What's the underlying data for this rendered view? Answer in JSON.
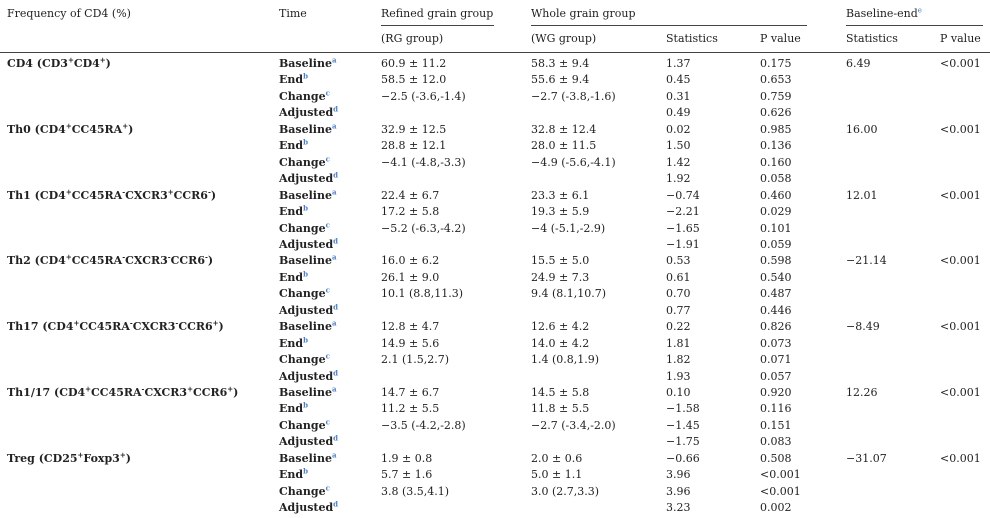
{
  "header": {
    "col_frequency": "Frequency of CD4 (%)",
    "col_time": "Time",
    "col_rg": "Refined grain group",
    "col_rg_sub": "(RG group)",
    "col_wg": "Whole grain group",
    "col_wg_sub": "(WG group)",
    "col_stats": "Statistics",
    "col_p": "P value",
    "col_baseline_end": "Baseline-end",
    "col_baseline_end_sup": "e",
    "col_stats2": "Statistics",
    "col_p2": "P value"
  },
  "time_labels": [
    {
      "label": "Baseline",
      "sup": "a"
    },
    {
      "label": "End",
      "sup": "b"
    },
    {
      "label": "Change",
      "sup": "c"
    },
    {
      "label": "Adjusted",
      "sup": "d"
    }
  ],
  "groups": [
    {
      "name_parts": [
        [
          "CD4 (CD3",
          ""
        ],
        [
          "+",
          "sup"
        ],
        [
          "CD4",
          ""
        ],
        [
          "+",
          "sup"
        ],
        [
          ")",
          ""
        ]
      ],
      "be_stat": "6.49",
      "be_p": "<0.001",
      "rows": [
        {
          "rg": "60.9 ± 11.2",
          "wg": "58.3 ± 9.4",
          "stat": "1.37",
          "p": "0.175"
        },
        {
          "rg": "58.5 ± 12.0",
          "wg": "55.6 ± 9.4",
          "stat": "0.45",
          "p": "0.653"
        },
        {
          "rg": "−2.5 (-3.6,-1.4)",
          "wg": "−2.7 (-3.8,-1.6)",
          "stat": "0.31",
          "p": "0.759"
        },
        {
          "rg": "",
          "wg": "",
          "stat": "0.49",
          "p": "0.626"
        }
      ]
    },
    {
      "name_parts": [
        [
          "Th0 (CD4",
          ""
        ],
        [
          "+",
          "sup"
        ],
        [
          "CC45RA",
          ""
        ],
        [
          "+",
          "sup"
        ],
        [
          ")",
          ""
        ]
      ],
      "be_stat": "16.00",
      "be_p": "<0.001",
      "rows": [
        {
          "rg": "32.9 ± 12.5",
          "wg": "32.8 ± 12.4",
          "stat": "0.02",
          "p": "0.985"
        },
        {
          "rg": "28.8 ± 12.1",
          "wg": "28.0 ± 11.5",
          "stat": "1.50",
          "p": "0.136"
        },
        {
          "rg": "−4.1 (-4.8,-3.3)",
          "wg": "−4.9 (-5.6,-4.1)",
          "stat": "1.42",
          "p": "0.160"
        },
        {
          "rg": "",
          "wg": "",
          "stat": "1.92",
          "p": "0.058"
        }
      ]
    },
    {
      "name_parts": [
        [
          "Th1 (CD4",
          ""
        ],
        [
          "+",
          "sup"
        ],
        [
          "CC45RA",
          ""
        ],
        [
          "-",
          "sup"
        ],
        [
          "CXCR3",
          ""
        ],
        [
          "+",
          "sup"
        ],
        [
          "CCR6",
          ""
        ],
        [
          "-",
          "sup"
        ],
        [
          ")",
          ""
        ]
      ],
      "be_stat": "12.01",
      "be_p": "<0.001",
      "rows": [
        {
          "rg": "22.4 ± 6.7",
          "wg": "23.3 ± 6.1",
          "stat": "−0.74",
          "p": "0.460"
        },
        {
          "rg": "17.2 ± 5.8",
          "wg": "19.3 ± 5.9",
          "stat": "−2.21",
          "p": "0.029"
        },
        {
          "rg": "−5.2 (-6.3,-4.2)",
          "wg": "−4 (-5.1,-2.9)",
          "stat": "−1.65",
          "p": "0.101"
        },
        {
          "rg": "",
          "wg": "",
          "stat": "−1.91",
          "p": "0.059"
        }
      ]
    },
    {
      "name_parts": [
        [
          "Th2 (CD4",
          ""
        ],
        [
          "+",
          "sup"
        ],
        [
          "CC45RA",
          ""
        ],
        [
          "-",
          "sup"
        ],
        [
          "CXCR3",
          ""
        ],
        [
          "-",
          "sup"
        ],
        [
          "CCR6",
          ""
        ],
        [
          "-",
          "sup"
        ],
        [
          ")",
          ""
        ]
      ],
      "be_stat": "−21.14",
      "be_p": "<0.001",
      "rows": [
        {
          "rg": "16.0 ± 6.2",
          "wg": "15.5 ± 5.0",
          "stat": "0.53",
          "p": "0.598"
        },
        {
          "rg": "26.1 ± 9.0",
          "wg": "24.9 ± 7.3",
          "stat": "0.61",
          "p": "0.540"
        },
        {
          "rg": "10.1 (8.8,11.3)",
          "wg": "9.4 (8.1,10.7)",
          "stat": "0.70",
          "p": "0.487"
        },
        {
          "rg": "",
          "wg": "",
          "stat": "0.77",
          "p": "0.446"
        }
      ]
    },
    {
      "name_parts": [
        [
          "Th17 (CD4",
          ""
        ],
        [
          "+",
          "sup"
        ],
        [
          "CC45RA",
          ""
        ],
        [
          "-",
          "sup"
        ],
        [
          "CXCR3",
          ""
        ],
        [
          "-",
          "sup"
        ],
        [
          "CCR6",
          ""
        ],
        [
          "+",
          "sup"
        ],
        [
          ")",
          ""
        ]
      ],
      "be_stat": "−8.49",
      "be_p": "<0.001",
      "rows": [
        {
          "rg": "12.8 ± 4.7",
          "wg": "12.6 ± 4.2",
          "stat": "0.22",
          "p": "0.826"
        },
        {
          "rg": "14.9 ± 5.6",
          "wg": "14.0 ± 4.2",
          "stat": "1.81",
          "p": "0.073"
        },
        {
          "rg": "2.1 (1.5,2.7)",
          "wg": "1.4 (0.8,1.9)",
          "stat": "1.82",
          "p": "0.071"
        },
        {
          "rg": "",
          "wg": "",
          "stat": "1.93",
          "p": "0.057"
        }
      ]
    },
    {
      "name_parts": [
        [
          "Th1/17 (CD4",
          ""
        ],
        [
          "+",
          "sup"
        ],
        [
          "CC45RA",
          ""
        ],
        [
          "-",
          "sup"
        ],
        [
          "CXCR3",
          ""
        ],
        [
          "+",
          "sup"
        ],
        [
          "CCR6",
          ""
        ],
        [
          "+",
          "sup"
        ],
        [
          ")",
          ""
        ]
      ],
      "be_stat": "12.26",
      "be_p": "<0.001",
      "rows": [
        {
          "rg": "14.7 ± 6.7",
          "wg": "14.5 ± 5.8",
          "stat": "0.10",
          "p": "0.920"
        },
        {
          "rg": "11.2 ± 5.5",
          "wg": "11.8 ± 5.5",
          "stat": "−1.58",
          "p": "0.116"
        },
        {
          "rg": "−3.5 (-4.2,-2.8)",
          "wg": "−2.7 (-3.4,-2.0)",
          "stat": "−1.45",
          "p": "0.151"
        },
        {
          "rg": "",
          "wg": "",
          "stat": "−1.75",
          "p": "0.083"
        }
      ]
    },
    {
      "name_parts": [
        [
          "Treg (CD25",
          ""
        ],
        [
          "+",
          "sup"
        ],
        [
          "Foxp3",
          ""
        ],
        [
          "+",
          "sup"
        ],
        [
          ")",
          ""
        ]
      ],
      "be_stat": "−31.07",
      "be_p": "<0.001",
      "rows": [
        {
          "rg": "1.9 ± 0.8",
          "wg": "2.0 ± 0.6",
          "stat": "−0.66",
          "p": "0.508"
        },
        {
          "rg": "5.7 ± 1.6",
          "wg": "5.0 ± 1.1",
          "stat": "3.96",
          "p": "<0.001"
        },
        {
          "rg": "3.8 (3.5,4.1)",
          "wg": "3.0 (2.7,3.3)",
          "stat": "3.96",
          "p": "<0.001"
        },
        {
          "rg": "",
          "wg": "",
          "stat": "3.23",
          "p": "0.002"
        }
      ]
    }
  ],
  "colors": {
    "text": "#222222",
    "superscript_accent": "#4a7fc1",
    "rule": "#444444"
  }
}
